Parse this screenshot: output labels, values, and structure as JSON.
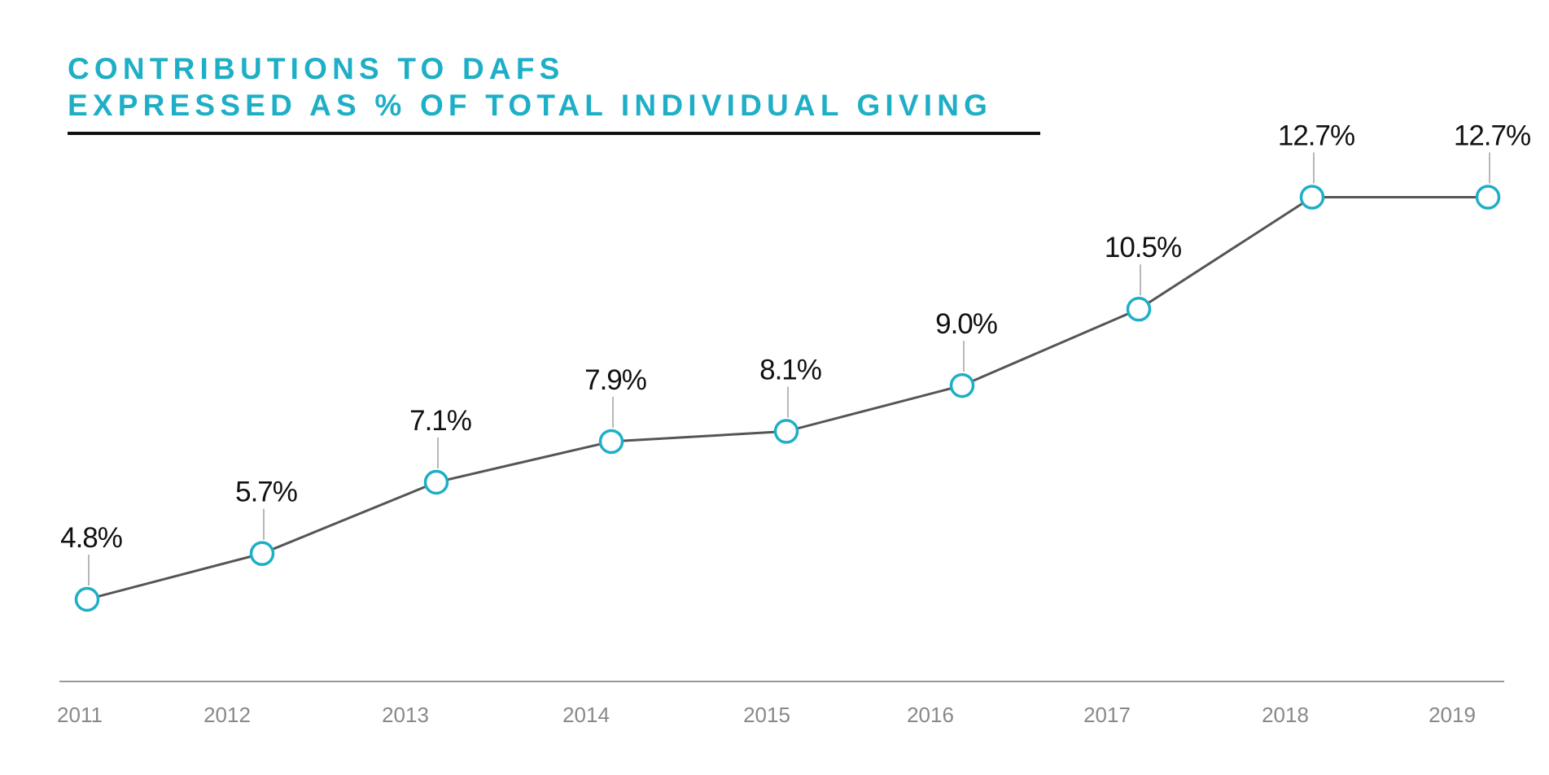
{
  "chart_data": {
    "type": "line",
    "title": [
      "CONTRIBUTIONS TO DAFS",
      "EXPRESSED AS % OF TOTAL INDIVIDUAL GIVING"
    ],
    "xlabel": "",
    "ylabel": "",
    "categories": [
      "2011",
      "2012",
      "2013",
      "2014",
      "2015",
      "2016",
      "2017",
      "2018",
      "2019"
    ],
    "values": [
      4.8,
      5.7,
      7.1,
      7.9,
      8.1,
      9.0,
      10.5,
      12.7,
      12.7
    ],
    "data_labels": [
      "4.8%",
      "5.7%",
      "7.1%",
      "7.9%",
      "8.1%",
      "9.0%",
      "10.5%",
      "12.7%",
      "12.7%"
    ],
    "grid": false,
    "legend": "none",
    "colors": {
      "title": "#1eafc6",
      "marker": "#1eafc6",
      "line": "#555555",
      "axis": "#999999",
      "tick_label": "#888888",
      "data_label": "#111111"
    }
  }
}
